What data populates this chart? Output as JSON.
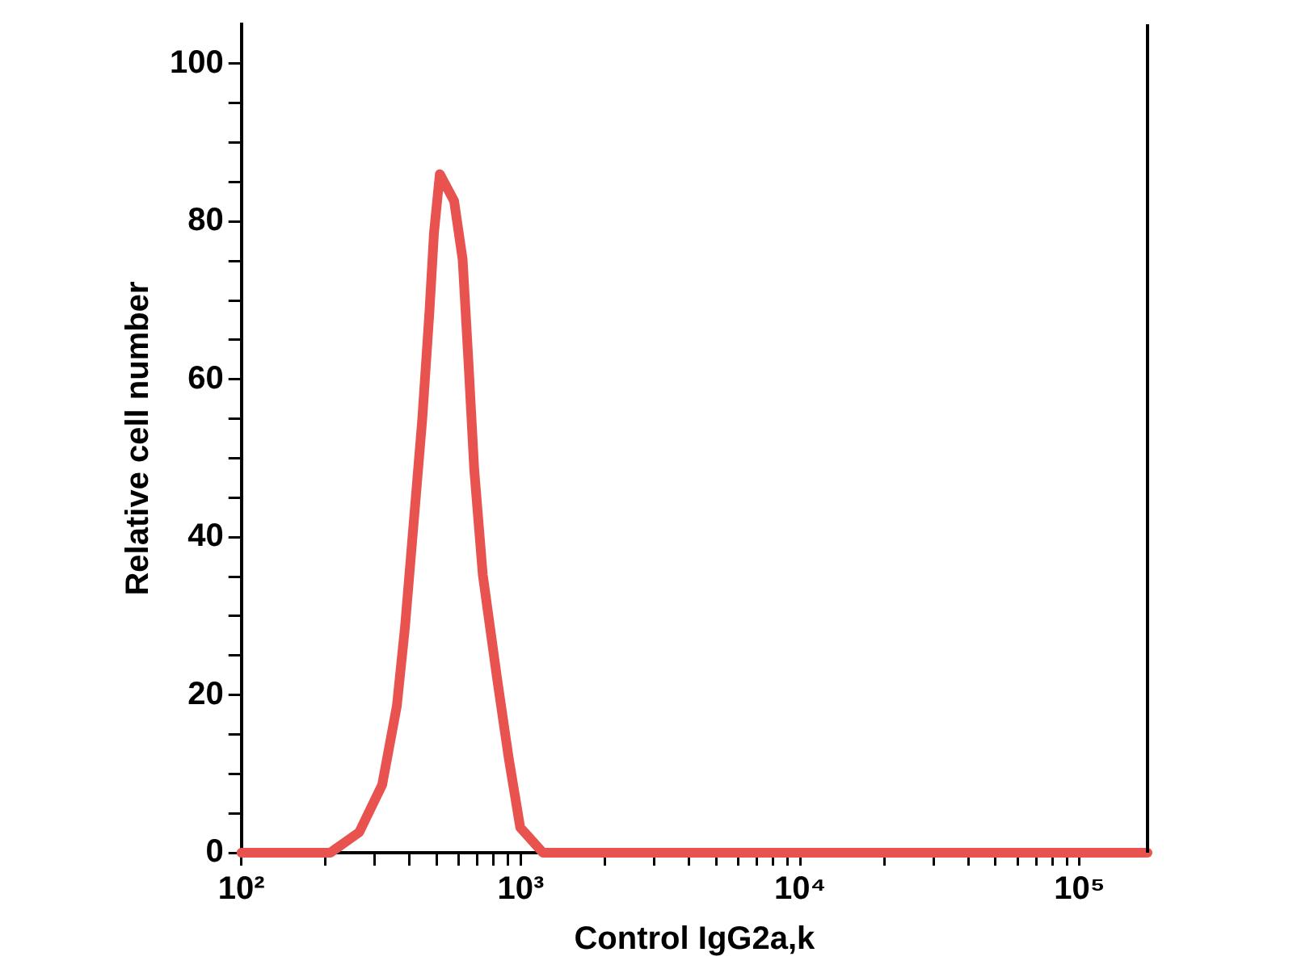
{
  "chart_data": {
    "type": "line",
    "xlabel": "Control IgG2a,k",
    "ylabel": "Relative cell number",
    "log": "x",
    "grid": false,
    "legend": false,
    "marker": "none",
    "line_style": "solid",
    "x": [
      100,
      208,
      264,
      319,
      360,
      385,
      414,
      444,
      471,
      489,
      513,
      577,
      619,
      650,
      681,
      731,
      823,
      905,
      995,
      1200,
      175000
    ],
    "series": [
      {
        "color": "#e8524f",
        "values": [
          0,
          0,
          2.6,
          8.6,
          18.6,
          28.6,
          42,
          55,
          68.6,
          78.6,
          86,
          82.6,
          75.2,
          62,
          48.6,
          35.2,
          22,
          12,
          3.2,
          0,
          0
        ]
      }
    ],
    "xlim": [
      100,
      175000
    ],
    "ylim": [
      0,
      105
    ],
    "xticks": [
      {
        "value": 100,
        "label": "10²"
      },
      {
        "value": 200,
        "label": null
      },
      {
        "value": 300,
        "label": null
      },
      {
        "value": 400,
        "label": null
      },
      {
        "value": 500,
        "label": null
      },
      {
        "value": 600,
        "label": null
      },
      {
        "value": 700,
        "label": null
      },
      {
        "value": 800,
        "label": null
      },
      {
        "value": 900,
        "label": null
      },
      {
        "value": 1000,
        "label": "10³"
      },
      {
        "value": 2000,
        "label": null
      },
      {
        "value": 3000,
        "label": null
      },
      {
        "value": 4000,
        "label": null
      },
      {
        "value": 5000,
        "label": null
      },
      {
        "value": 6000,
        "label": null
      },
      {
        "value": 7000,
        "label": null
      },
      {
        "value": 8000,
        "label": null
      },
      {
        "value": 9000,
        "label": null
      },
      {
        "value": 10000,
        "label": "10⁴"
      },
      {
        "value": 20000,
        "label": null
      },
      {
        "value": 30000,
        "label": null
      },
      {
        "value": 40000,
        "label": null
      },
      {
        "value": 50000,
        "label": null
      },
      {
        "value": 60000,
        "label": null
      },
      {
        "value": 70000,
        "label": null
      },
      {
        "value": 80000,
        "label": null
      },
      {
        "value": 90000,
        "label": null
      },
      {
        "value": 100000,
        "label": "10⁵"
      }
    ],
    "yticks": [
      0,
      {
        "value": 5,
        "label": null
      },
      {
        "value": 10,
        "label": null
      },
      {
        "value": 15,
        "label": null
      },
      20,
      {
        "value": 25,
        "label": null
      },
      {
        "value": 30,
        "label": null
      },
      {
        "value": 35,
        "label": null
      },
      40,
      {
        "value": 45,
        "label": null
      },
      {
        "value": 50,
        "label": null
      },
      {
        "value": 55,
        "label": null
      },
      60,
      {
        "value": 65,
        "label": null
      },
      {
        "value": 70,
        "label": null
      },
      {
        "value": 75,
        "label": null
      },
      80,
      {
        "value": 85,
        "label": null
      },
      {
        "value": 90,
        "label": null
      },
      {
        "value": 95,
        "label": null
      },
      100
    ]
  }
}
